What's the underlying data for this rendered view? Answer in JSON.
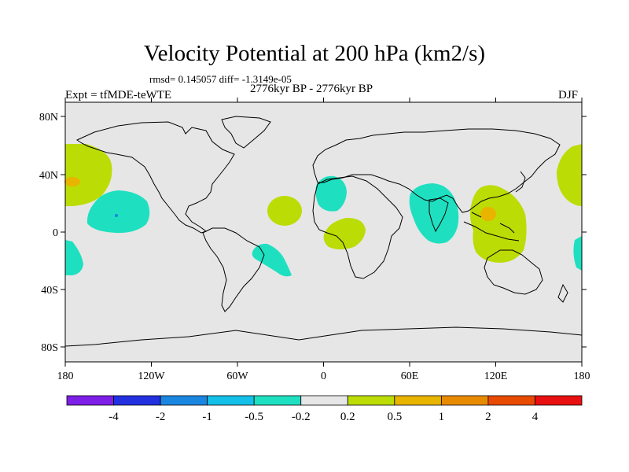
{
  "title": "Velocity Potential at 200 hPa (km2/s)",
  "stats": "rmsd= 0.145057 diff= -1.3149e-05",
  "experiment": "Expt = tfMDE-teWTE",
  "period": "2776kyr BP - 2776kyr BP",
  "season": "DJF",
  "lat_labels": [
    "80N",
    "40N",
    "0",
    "40S",
    "80S"
  ],
  "lon_labels": [
    "180",
    "120W",
    "60W",
    "0",
    "60E",
    "120E",
    "180"
  ],
  "colorbar": {
    "colors": [
      "#7d1fe6",
      "#2230e0",
      "#1a86e0",
      "#14c0e8",
      "#1ee0c0",
      "#e6e6e6",
      "#bcdc05",
      "#e8b400",
      "#e88a00",
      "#e84a00",
      "#e81010"
    ],
    "labels": [
      "-4",
      "-2",
      "-1",
      "-0.5",
      "-0.2",
      "0.2",
      "0.5",
      "1",
      "2",
      "4"
    ]
  },
  "colors": {
    "background": "#e6e6e6",
    "positive": "#bcdc05",
    "negative": "#1ee0c0",
    "positive_strong": "#e8b400",
    "negative_strong": "#1a86e0"
  }
}
